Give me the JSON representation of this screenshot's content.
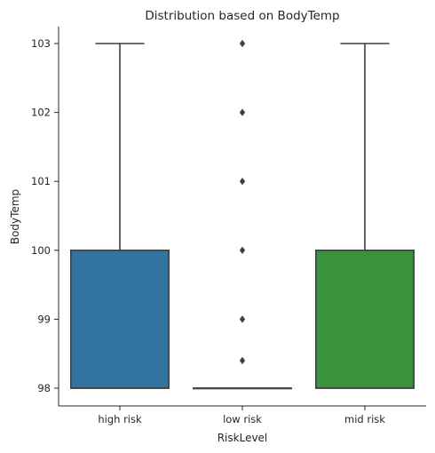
{
  "chart_data": {
    "type": "box",
    "title": "Distribution based on BodyTemp",
    "xlabel": "RiskLevel",
    "ylabel": "BodyTemp",
    "categories": [
      "high risk",
      "low risk",
      "mid risk"
    ],
    "yticks": [
      98,
      99,
      100,
      101,
      102,
      103
    ],
    "ylim": [
      97.75,
      103.3
    ],
    "grid": false,
    "boxes": [
      {
        "category": "high risk",
        "min": 98,
        "q1": 98,
        "median": 98,
        "q3": 100,
        "max": 103,
        "outliers": [],
        "color": "#3274a1"
      },
      {
        "category": "low risk",
        "min": 98,
        "q1": 98,
        "median": 98,
        "q3": 98,
        "max": 98,
        "outliers": [
          98.4,
          99,
          100,
          101,
          102,
          103
        ],
        "color": "#e1812c"
      },
      {
        "category": "mid risk",
        "min": 98,
        "q1": 98,
        "median": 98,
        "q3": 100,
        "max": 103,
        "outliers": [],
        "color": "#3a923a"
      }
    ],
    "line_color": "#3f3f3f"
  }
}
